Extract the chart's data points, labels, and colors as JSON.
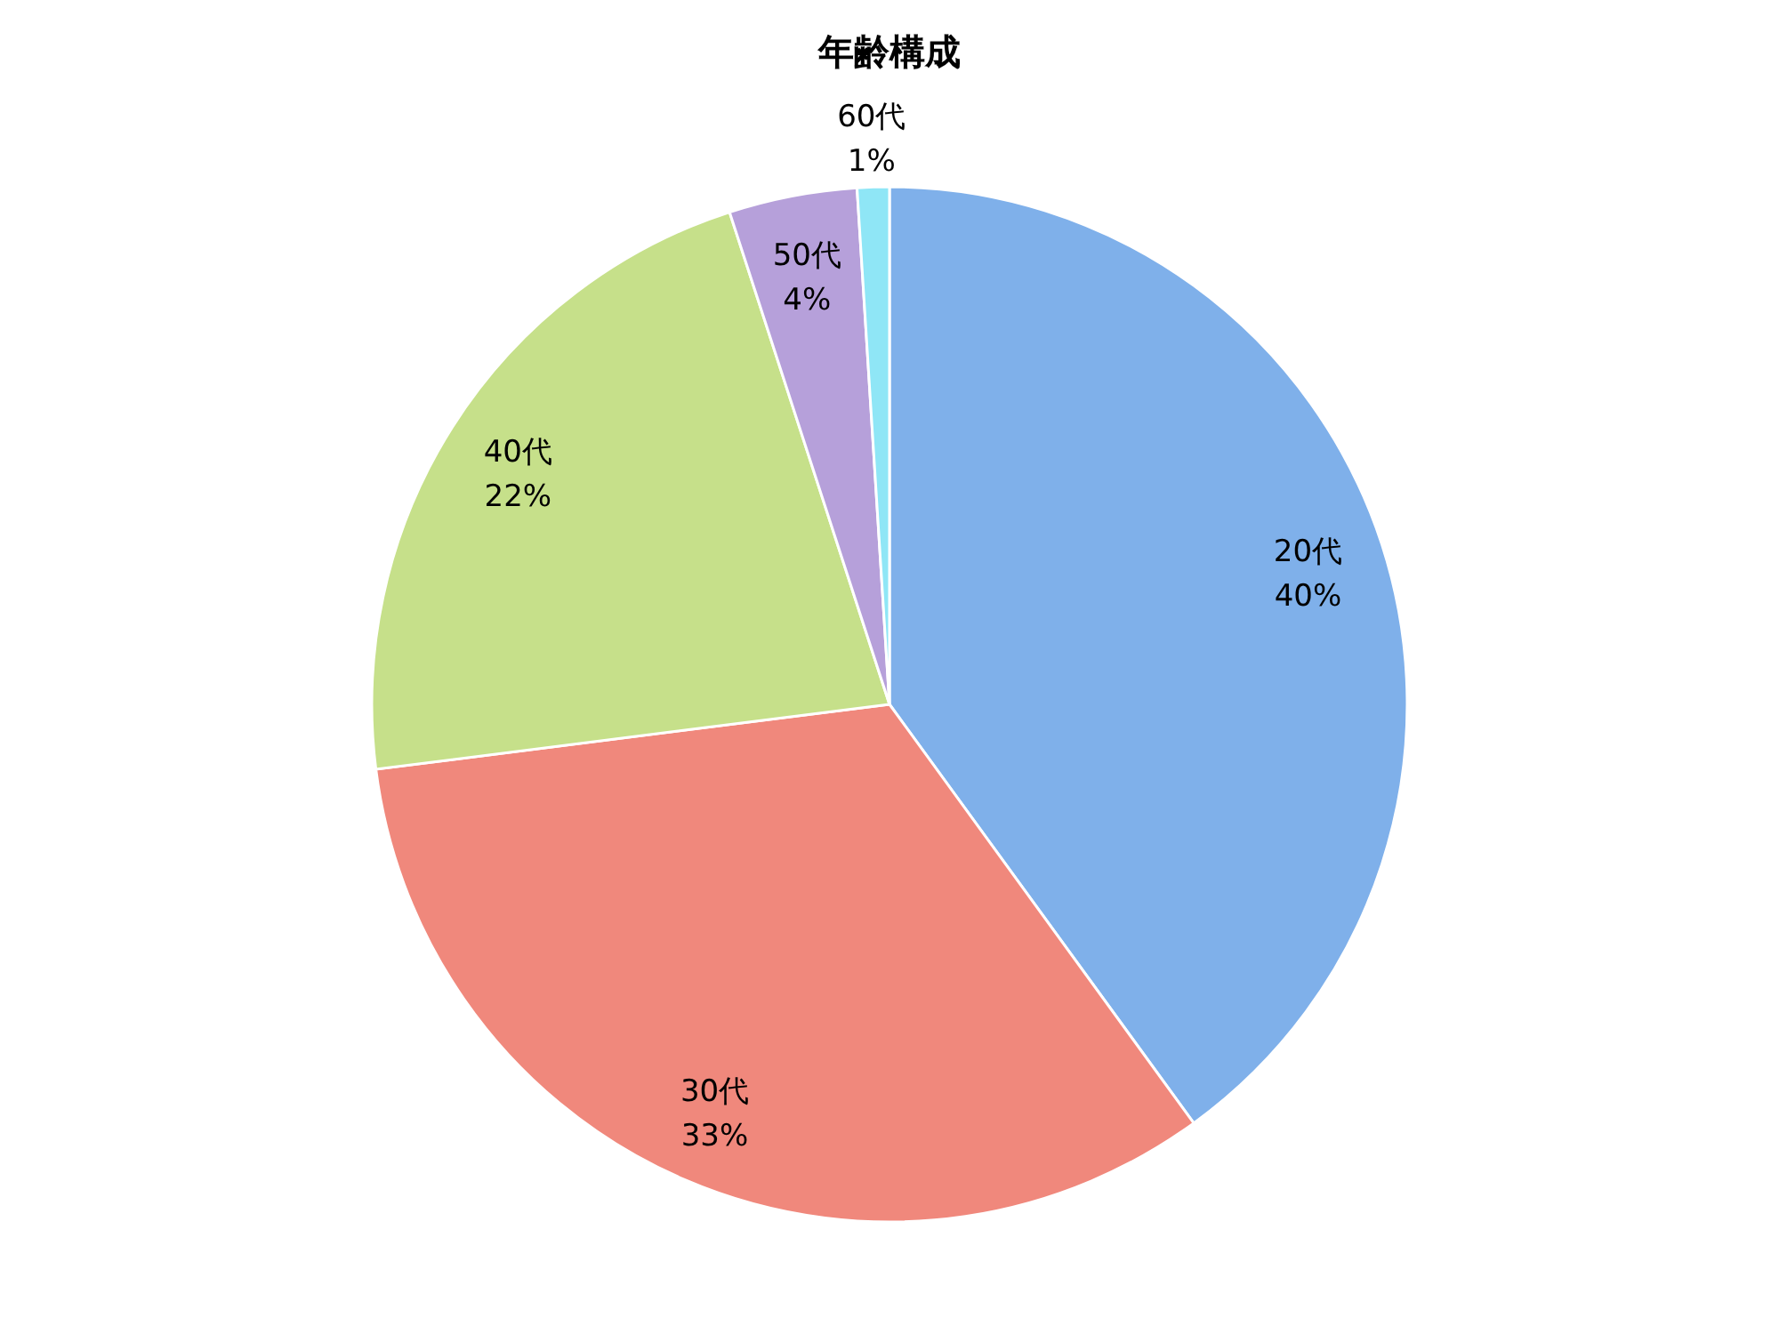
{
  "chart_data": {
    "type": "pie",
    "title": "年齢構成",
    "categories": [
      "20代",
      "30代",
      "40代",
      "50代",
      "60代"
    ],
    "values": [
      40,
      33,
      22,
      4,
      1
    ],
    "value_labels": [
      "40%",
      "33%",
      "22%",
      "4%",
      "1%"
    ],
    "colors": [
      "#7fb0ea",
      "#f0887c",
      "#c6e08a",
      "#b6a0da",
      "#8fe6f6"
    ]
  }
}
